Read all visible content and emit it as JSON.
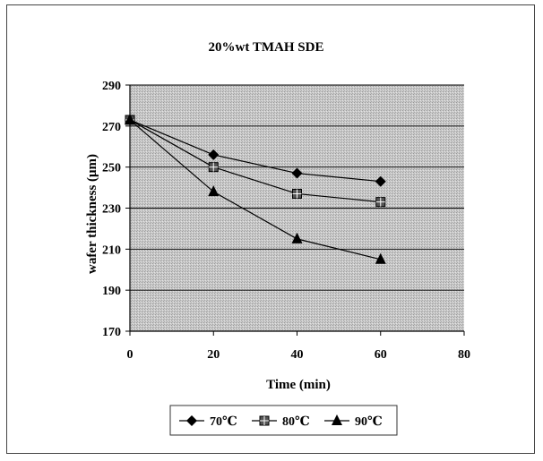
{
  "chart_data": {
    "type": "line",
    "title": "20%wt TMAH SDE",
    "xlabel": "Time (min)",
    "ylabel": "wafer thickness (μm)",
    "xlim": [
      0,
      80
    ],
    "ylim": [
      170,
      290
    ],
    "xticks": [
      0,
      20,
      40,
      60,
      80
    ],
    "yticks": [
      170,
      190,
      210,
      230,
      250,
      270,
      290
    ],
    "grid": "horizontal",
    "legend_position": "bottom",
    "series": [
      {
        "name": "70℃",
        "marker": "diamond",
        "x": [
          0,
          20,
          40,
          60
        ],
        "y": [
          273,
          256,
          247,
          243
        ]
      },
      {
        "name": "80℃",
        "marker": "square",
        "x": [
          0,
          20,
          40,
          60
        ],
        "y": [
          273,
          250,
          237,
          233
        ]
      },
      {
        "name": "90℃",
        "marker": "triangle",
        "x": [
          0,
          20,
          40,
          60
        ],
        "y": [
          273,
          238,
          215,
          205
        ]
      }
    ]
  }
}
